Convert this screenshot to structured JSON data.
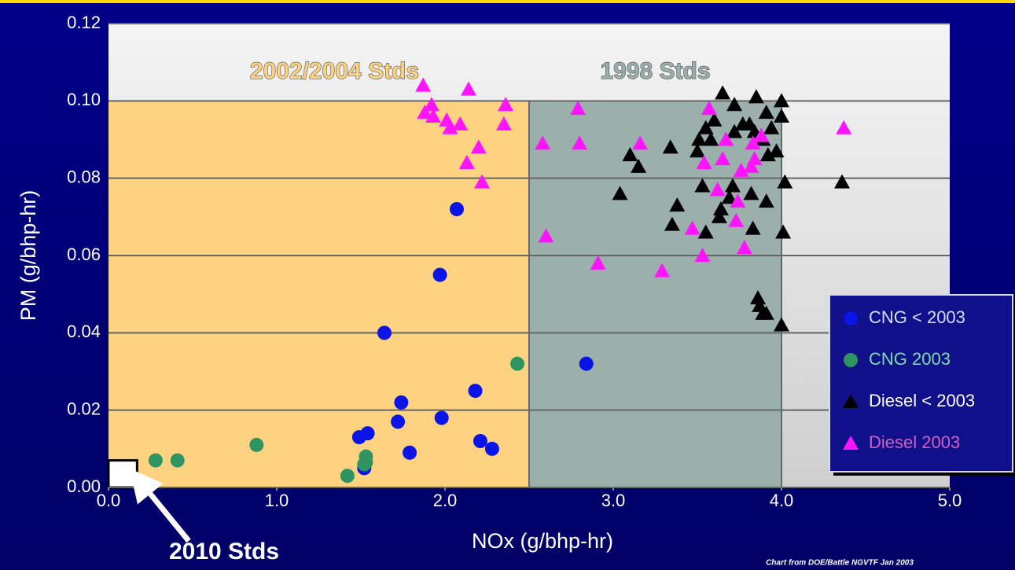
{
  "chart_data": {
    "type": "scatter",
    "xlabel": "NOx (g/bhp-hr)",
    "ylabel": "PM (g/bhp-hr)",
    "xlim": [
      0,
      5
    ],
    "ylim": [
      0,
      0.12
    ],
    "xticks": [
      {
        "value": 0,
        "label": "0.0"
      },
      {
        "value": 1,
        "label": "1.0"
      },
      {
        "value": 2,
        "label": "2.0"
      },
      {
        "value": 3,
        "label": "3.0"
      },
      {
        "value": 4,
        "label": "4.0"
      },
      {
        "value": 5,
        "label": "5.0"
      }
    ],
    "yticks": [
      {
        "value": 0,
        "label": "0.00"
      },
      {
        "value": 0.02,
        "label": "0.02"
      },
      {
        "value": 0.04,
        "label": "0.04"
      },
      {
        "value": 0.06,
        "label": "0.06"
      },
      {
        "value": 0.08,
        "label": "0.08"
      },
      {
        "value": 0.1,
        "label": "0.10"
      },
      {
        "value": 0.12,
        "label": "0.12"
      }
    ],
    "grid": true,
    "legend": "lower right",
    "regions": [
      {
        "label": "2002/2004 Stds",
        "xlim": [
          0,
          2.5
        ],
        "ylim": [
          0,
          0.1
        ],
        "color": "#fdd382"
      },
      {
        "label": "1998 Stds",
        "xlim": [
          2.5,
          4
        ],
        "ylim": [
          0,
          0.1
        ],
        "color": "#9bb0ab"
      },
      {
        "label": "2010 Stds",
        "xlim": [
          0,
          0.17
        ],
        "ylim": [
          0,
          0.007
        ],
        "color": "#ffffff"
      }
    ],
    "series": [
      {
        "name": "CNG < 2003",
        "color": "#0a14e6",
        "marker": "circle",
        "x": [
          2.07,
          1.97,
          1.64,
          2.84,
          2.18,
          1.74,
          1.72,
          1.98,
          1.54,
          1.49,
          2.21,
          2.28,
          1.79,
          1.52
        ],
        "values": [
          0.072,
          0.055,
          0.04,
          0.032,
          0.025,
          0.022,
          0.017,
          0.018,
          0.014,
          0.013,
          0.012,
          0.01,
          0.009,
          0.005
        ]
      },
      {
        "name": "CNG 2003",
        "color": "#2e9460",
        "marker": "circle",
        "x": [
          0.28,
          0.41,
          0.88,
          1.42,
          1.53,
          1.53,
          1.52,
          2.43
        ],
        "values": [
          0.007,
          0.007,
          0.011,
          0.003,
          0.008,
          0.0065,
          0.006,
          0.032
        ]
      },
      {
        "name": "Diesel < 2003",
        "color": "#000000",
        "marker": "triangle",
        "x": [
          3.65,
          3.72,
          3.85,
          4.0,
          4.0,
          3.91,
          3.81,
          3.94,
          3.6,
          3.55,
          3.51,
          3.5,
          3.58,
          3.72,
          3.77,
          3.84,
          3.89,
          3.97,
          3.92,
          3.34,
          3.1,
          3.15,
          3.04,
          3.38,
          3.35,
          3.53,
          3.55,
          3.63,
          3.64,
          3.69,
          3.71,
          3.82,
          3.91,
          4.02,
          3.83,
          4.01,
          4.36,
          3.86,
          3.87,
          3.89,
          3.91,
          4.0
        ],
        "values": [
          0.102,
          0.099,
          0.101,
          0.1,
          0.096,
          0.097,
          0.094,
          0.093,
          0.095,
          0.093,
          0.09,
          0.087,
          0.09,
          0.092,
          0.094,
          0.092,
          0.09,
          0.087,
          0.086,
          0.088,
          0.086,
          0.083,
          0.076,
          0.073,
          0.068,
          0.078,
          0.066,
          0.07,
          0.072,
          0.075,
          0.078,
          0.076,
          0.074,
          0.079,
          0.067,
          0.066,
          0.079,
          0.049,
          0.047,
          0.045,
          0.045,
          0.042
        ]
      },
      {
        "name": "Diesel 2003",
        "color": "#ff14ff",
        "marker": "triangle",
        "x": [
          1.87,
          2.14,
          1.92,
          2.36,
          1.88,
          1.93,
          2.01,
          2.09,
          2.03,
          2.35,
          2.79,
          2.2,
          2.13,
          2.22,
          2.58,
          2.8,
          3.16,
          2.6,
          2.91,
          3.29,
          3.53,
          3.47,
          3.57,
          3.67,
          3.54,
          3.65,
          3.62,
          3.74,
          3.73,
          3.78,
          3.76,
          3.83,
          3.84,
          3.82,
          3.88,
          4.37
        ],
        "values": [
          0.104,
          0.103,
          0.099,
          0.099,
          0.097,
          0.096,
          0.095,
          0.094,
          0.093,
          0.094,
          0.098,
          0.088,
          0.084,
          0.079,
          0.089,
          0.089,
          0.089,
          0.065,
          0.058,
          0.056,
          0.06,
          0.067,
          0.098,
          0.09,
          0.084,
          0.085,
          0.077,
          0.074,
          0.069,
          0.062,
          0.082,
          0.089,
          0.085,
          0.083,
          0.091,
          0.093
        ]
      }
    ],
    "credit": "Chart from DOE/Battle NGVTF Jan 2003"
  }
}
